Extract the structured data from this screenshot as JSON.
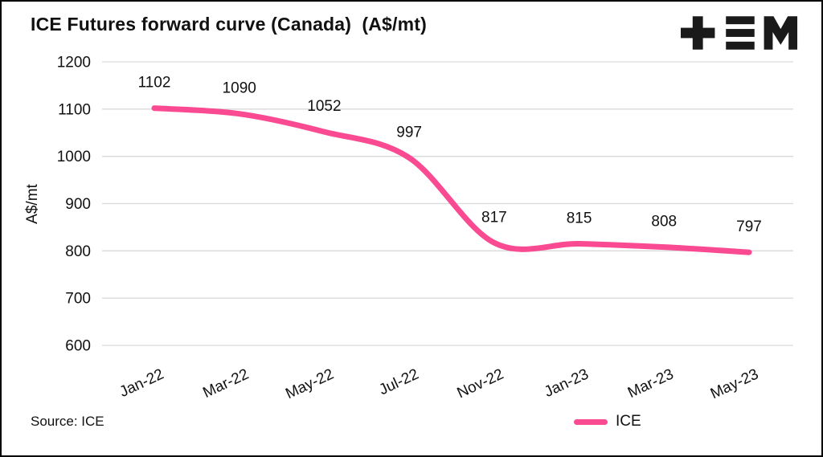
{
  "header": {
    "title": "ICE Futures forward curve (Canada)  (A$/mt)"
  },
  "brand": {
    "logo": "tem-logo"
  },
  "footer": {
    "source": "Source: ICE"
  },
  "legend": {
    "label": "ICE"
  },
  "colors": {
    "line": "#fa4a92",
    "grid": "#d9d9d9",
    "text": "#111111"
  },
  "chart_data": {
    "type": "line",
    "title": "ICE Futures forward curve (Canada)  (A$/mt)",
    "categories": [
      "Jan-22",
      "Mar-22",
      "May-22",
      "Jul-22",
      "Nov-22",
      "Jan-23",
      "Mar-23",
      "May-23"
    ],
    "series": [
      {
        "name": "ICE",
        "values": [
          1102,
          1090,
          1052,
          997,
          817,
          815,
          808,
          797
        ]
      }
    ],
    "data_labels": [
      1102,
      1090,
      1052,
      997,
      817,
      815,
      808,
      797
    ],
    "xlabel": "",
    "ylabel": "A$/mt",
    "ylim": [
      600,
      1200
    ],
    "yticks": [
      600,
      700,
      800,
      900,
      1000,
      1100,
      1200
    ],
    "grid": true,
    "line_smooth": true,
    "legend_position": "bottom"
  }
}
